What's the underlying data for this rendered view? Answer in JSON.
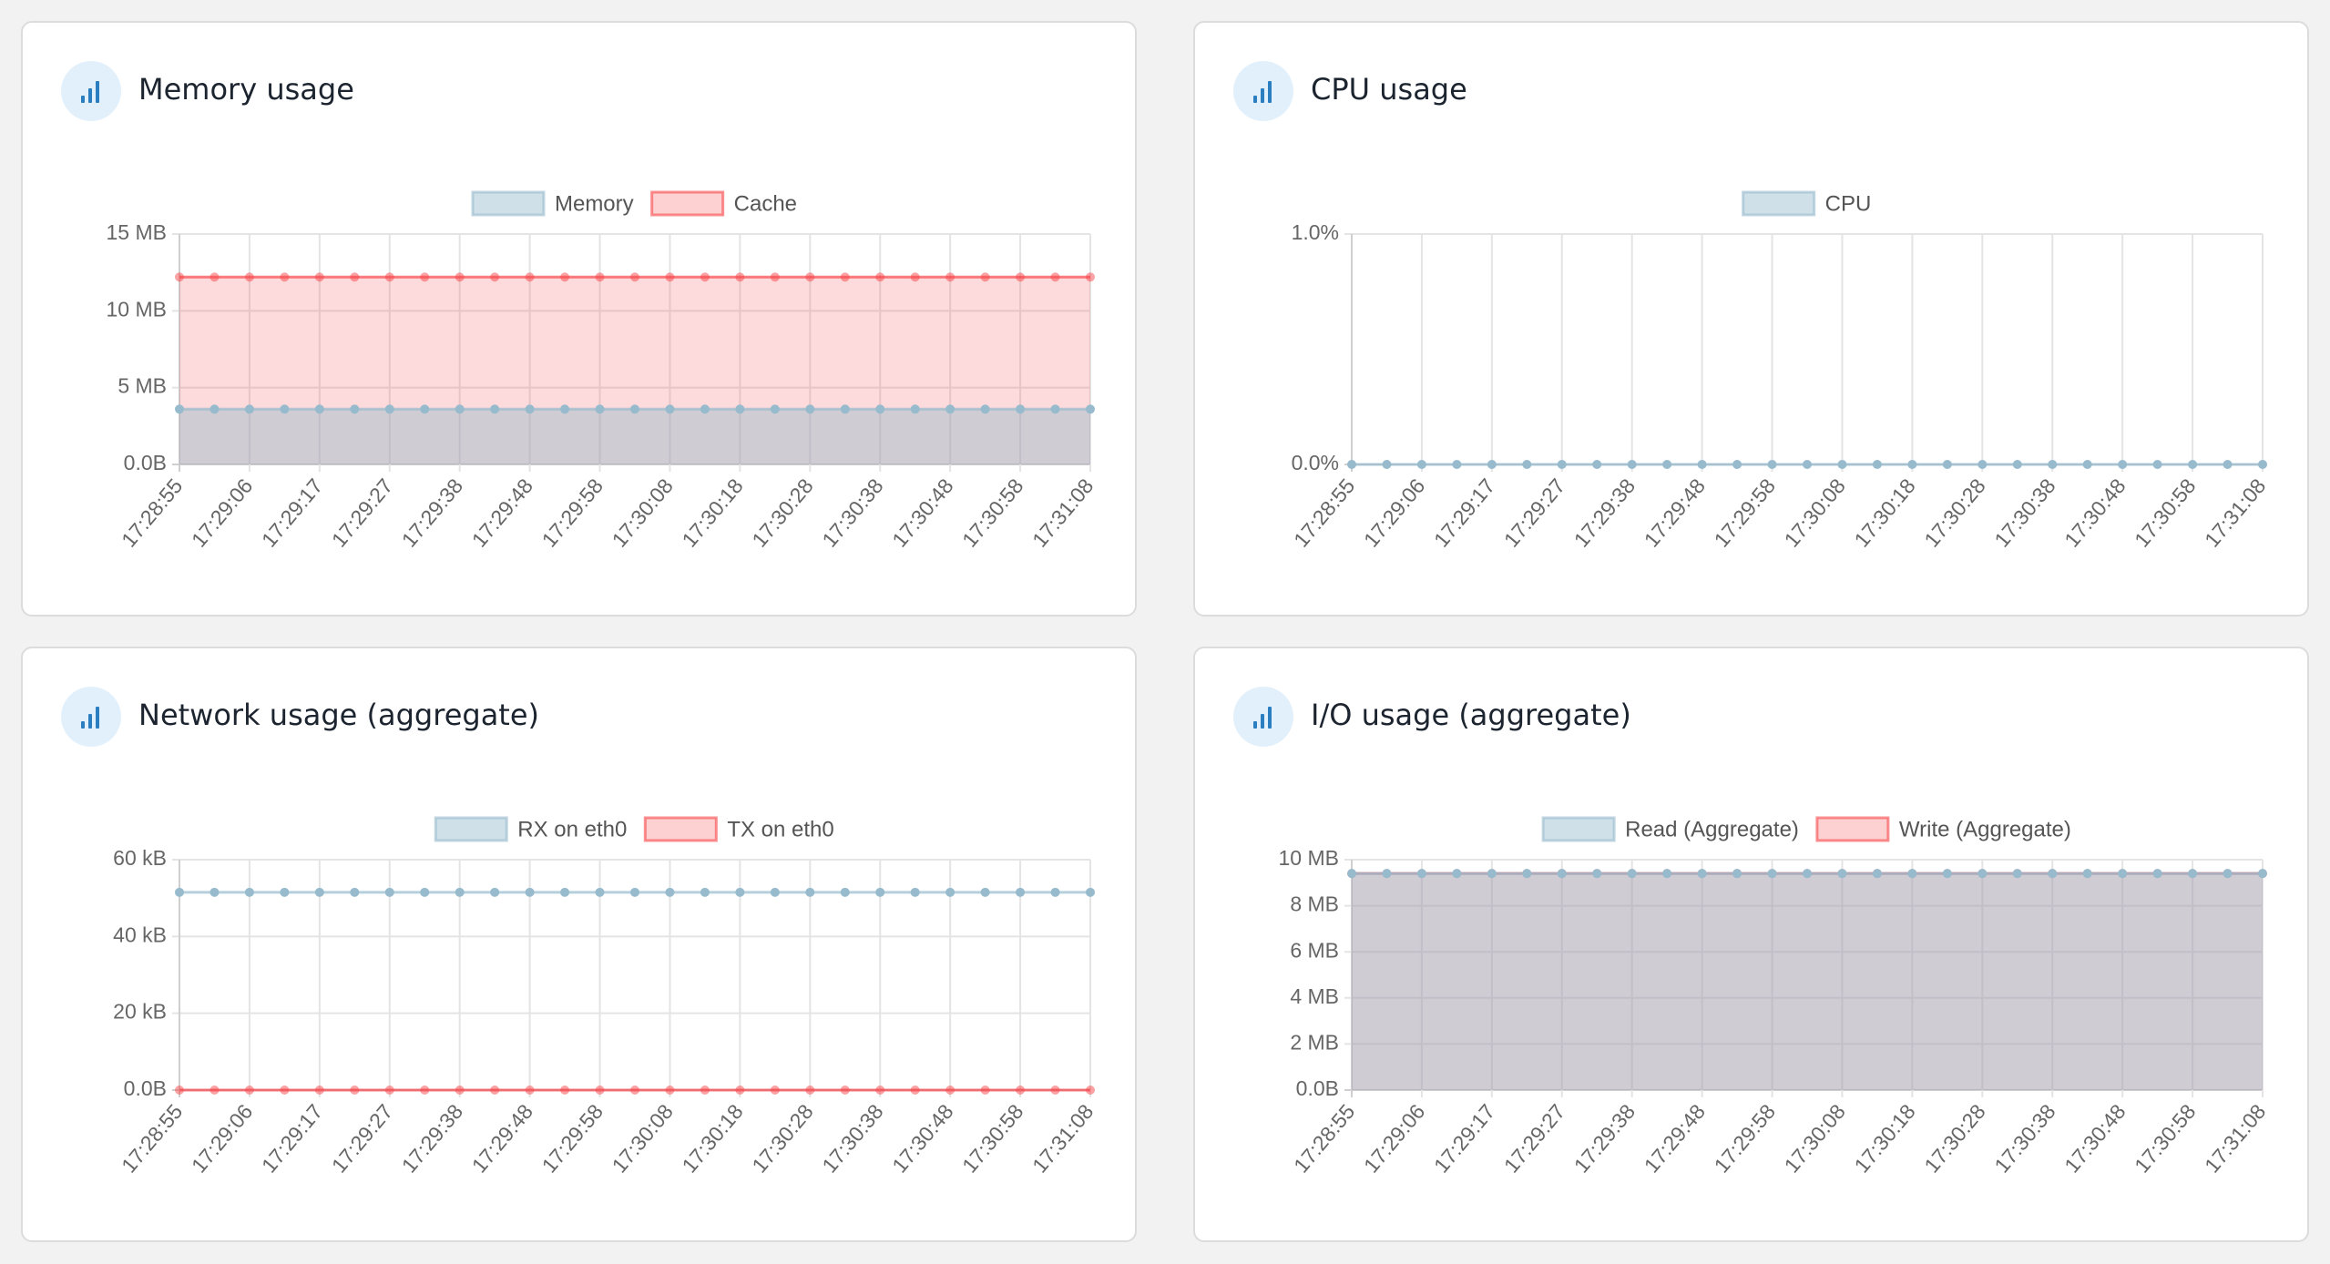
{
  "chart_data": [
    {
      "type": "line",
      "title": "Memory usage",
      "fill": true,
      "categories": [
        "17:28:55",
        null,
        "17:29:06",
        null,
        "17:29:17",
        null,
        "17:29:27",
        null,
        "17:29:38",
        null,
        "17:29:48",
        null,
        "17:29:58",
        null,
        "17:30:08",
        null,
        "17:30:18",
        null,
        "17:30:28",
        null,
        "17:30:38",
        null,
        "17:30:48",
        null,
        "17:30:58",
        null,
        "17:31:08"
      ],
      "series": [
        {
          "name": "Memory",
          "color": "#97bbcd",
          "values": [
            3.6,
            3.6,
            3.6,
            3.6,
            3.6,
            3.6,
            3.6,
            3.6,
            3.6,
            3.6,
            3.6,
            3.6,
            3.6,
            3.6,
            3.6,
            3.6,
            3.6,
            3.6,
            3.6,
            3.6,
            3.6,
            3.6,
            3.6,
            3.6,
            3.6,
            3.6,
            3.6
          ]
        },
        {
          "name": "Cache",
          "color": "#f7464a",
          "values": [
            12.2,
            12.2,
            12.2,
            12.2,
            12.2,
            12.2,
            12.2,
            12.2,
            12.2,
            12.2,
            12.2,
            12.2,
            12.2,
            12.2,
            12.2,
            12.2,
            12.2,
            12.2,
            12.2,
            12.2,
            12.2,
            12.2,
            12.2,
            12.2,
            12.2,
            12.2,
            12.2
          ]
        }
      ],
      "ylim": [
        0,
        15
      ],
      "yticks": [
        {
          "value": 0,
          "label": "0.0B"
        },
        {
          "value": 5,
          "label": "5 MB"
        },
        {
          "value": 10,
          "label": "10 MB"
        },
        {
          "value": 15,
          "label": "15 MB"
        }
      ],
      "grid": true
    },
    {
      "type": "line",
      "title": "CPU usage",
      "fill": false,
      "categories": [
        "17:28:55",
        null,
        "17:29:06",
        null,
        "17:29:17",
        null,
        "17:29:27",
        null,
        "17:29:38",
        null,
        "17:29:48",
        null,
        "17:29:58",
        null,
        "17:30:08",
        null,
        "17:30:18",
        null,
        "17:30:28",
        null,
        "17:30:38",
        null,
        "17:30:48",
        null,
        "17:30:58",
        null,
        "17:31:08"
      ],
      "series": [
        {
          "name": "CPU",
          "color": "#97bbcd",
          "values": [
            0,
            0,
            0,
            0,
            0,
            0,
            0,
            0,
            0,
            0,
            0,
            0,
            0,
            0,
            0,
            0,
            0,
            0,
            0,
            0,
            0,
            0,
            0,
            0,
            0,
            0,
            0
          ]
        }
      ],
      "ylim": [
        0,
        1
      ],
      "yticks": [
        {
          "value": 0,
          "label": "0.0%"
        },
        {
          "value": 1,
          "label": "1.0%"
        }
      ],
      "grid": true
    },
    {
      "type": "line",
      "title": "Network usage (aggregate)",
      "fill": false,
      "categories": [
        "17:28:55",
        null,
        "17:29:06",
        null,
        "17:29:17",
        null,
        "17:29:27",
        null,
        "17:29:38",
        null,
        "17:29:48",
        null,
        "17:29:58",
        null,
        "17:30:08",
        null,
        "17:30:18",
        null,
        "17:30:28",
        null,
        "17:30:38",
        null,
        "17:30:48",
        null,
        "17:30:58",
        null,
        "17:31:08"
      ],
      "series": [
        {
          "name": "RX on eth0",
          "color": "#97bbcd",
          "values": [
            51.5,
            51.5,
            51.5,
            51.5,
            51.5,
            51.5,
            51.5,
            51.5,
            51.5,
            51.5,
            51.5,
            51.5,
            51.5,
            51.5,
            51.5,
            51.5,
            51.5,
            51.5,
            51.5,
            51.5,
            51.5,
            51.5,
            51.5,
            51.5,
            51.5,
            51.5,
            51.5
          ]
        },
        {
          "name": "TX on eth0",
          "color": "#f7464a",
          "values": [
            0,
            0,
            0,
            0,
            0,
            0,
            0,
            0,
            0,
            0,
            0,
            0,
            0,
            0,
            0,
            0,
            0,
            0,
            0,
            0,
            0,
            0,
            0,
            0,
            0,
            0,
            0
          ]
        }
      ],
      "ylim": [
        0,
        60
      ],
      "yticks": [
        {
          "value": 0,
          "label": "0.0B"
        },
        {
          "value": 20,
          "label": "20 kB"
        },
        {
          "value": 40,
          "label": "40 kB"
        },
        {
          "value": 60,
          "label": "60 kB"
        }
      ],
      "grid": true
    },
    {
      "type": "line",
      "title": "I/O usage (aggregate)",
      "fill": true,
      "categories": [
        "17:28:55",
        null,
        "17:29:06",
        null,
        "17:29:17",
        null,
        "17:29:27",
        null,
        "17:29:38",
        null,
        "17:29:48",
        null,
        "17:29:58",
        null,
        "17:30:08",
        null,
        "17:30:18",
        null,
        "17:30:28",
        null,
        "17:30:38",
        null,
        "17:30:48",
        null,
        "17:30:58",
        null,
        "17:31:08"
      ],
      "series": [
        {
          "name": "Read (Aggregate)",
          "color": "#97bbcd",
          "values": [
            9.4,
            9.4,
            9.4,
            9.4,
            9.4,
            9.4,
            9.4,
            9.4,
            9.4,
            9.4,
            9.4,
            9.4,
            9.4,
            9.4,
            9.4,
            9.4,
            9.4,
            9.4,
            9.4,
            9.4,
            9.4,
            9.4,
            9.4,
            9.4,
            9.4,
            9.4,
            9.4
          ]
        },
        {
          "name": "Write (Aggregate)",
          "color": "#f7464a",
          "values": [
            9.4,
            9.4,
            9.4,
            9.4,
            9.4,
            9.4,
            9.4,
            9.4,
            9.4,
            9.4,
            9.4,
            9.4,
            9.4,
            9.4,
            9.4,
            9.4,
            9.4,
            9.4,
            9.4,
            9.4,
            9.4,
            9.4,
            9.4,
            9.4,
            9.4,
            9.4,
            9.4
          ]
        }
      ],
      "ylim": [
        0,
        10
      ],
      "yticks": [
        {
          "value": 0,
          "label": "0.0B"
        },
        {
          "value": 2,
          "label": "2 MB"
        },
        {
          "value": 4,
          "label": "4 MB"
        },
        {
          "value": 6,
          "label": "6 MB"
        },
        {
          "value": 8,
          "label": "8 MB"
        },
        {
          "value": 10,
          "label": "10 MB"
        }
      ],
      "grid": true
    }
  ]
}
